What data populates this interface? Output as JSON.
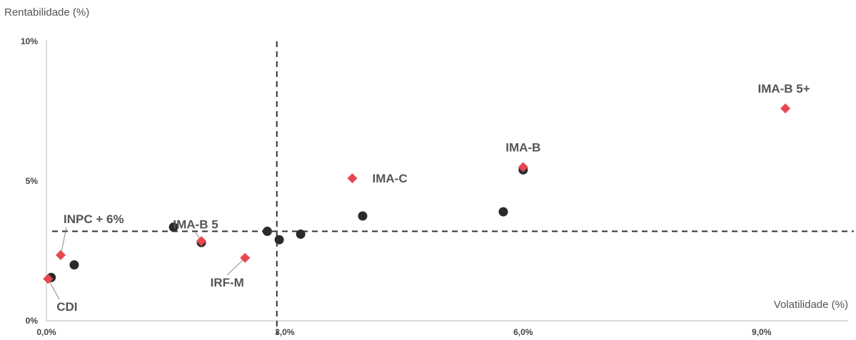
{
  "chart_data": {
    "type": "scatter",
    "xlabel": "Volatilidade (%)",
    "ylabel": "Rentabilidade (%)",
    "xlim": [
      0,
      10
    ],
    "ylim": [
      0,
      10
    ],
    "x_ticks": [
      {
        "value": 0,
        "label": "0,0%"
      },
      {
        "value": 3,
        "label": "3,0%"
      },
      {
        "value": 6,
        "label": "6,0%"
      },
      {
        "value": 9,
        "label": "9,0%"
      }
    ],
    "y_ticks": [
      {
        "value": 0,
        "label": "0%"
      },
      {
        "value": 5,
        "label": "5%"
      },
      {
        "value": 10,
        "label": "10%"
      }
    ],
    "reference_lines": {
      "x": 2.9,
      "y": 3.2
    },
    "colors": {
      "benchmark": "#e8474f",
      "fund": "#2b2b2b",
      "axis": "#bbbbbb",
      "reference": "#333333"
    },
    "series": [
      {
        "marker": "diamond",
        "points": [
          {
            "x": 0.02,
            "y": 1.5,
            "label": "CDI"
          },
          {
            "x": 0.18,
            "y": 2.35,
            "label": "INPC + 6%"
          },
          {
            "x": 1.95,
            "y": 2.85,
            "label": "IMA-B 5"
          },
          {
            "x": 2.5,
            "y": 2.25,
            "label": "IRF-M"
          },
          {
            "x": 3.85,
            "y": 5.1,
            "label": "IMA-C"
          },
          {
            "x": 6.0,
            "y": 5.5,
            "label": "IMA-B"
          },
          {
            "x": 9.3,
            "y": 7.6,
            "label": "IMA-B 5+"
          }
        ]
      },
      {
        "marker": "circle",
        "points": [
          {
            "x": 0.06,
            "y": 1.55
          },
          {
            "x": 0.35,
            "y": 2.0
          },
          {
            "x": 1.6,
            "y": 3.35
          },
          {
            "x": 1.95,
            "y": 2.8
          },
          {
            "x": 2.78,
            "y": 3.2
          },
          {
            "x": 2.93,
            "y": 2.9
          },
          {
            "x": 3.2,
            "y": 3.1
          },
          {
            "x": 3.98,
            "y": 3.75
          },
          {
            "x": 5.75,
            "y": 3.9
          },
          {
            "x": 6.0,
            "y": 5.4
          }
        ]
      }
    ]
  }
}
